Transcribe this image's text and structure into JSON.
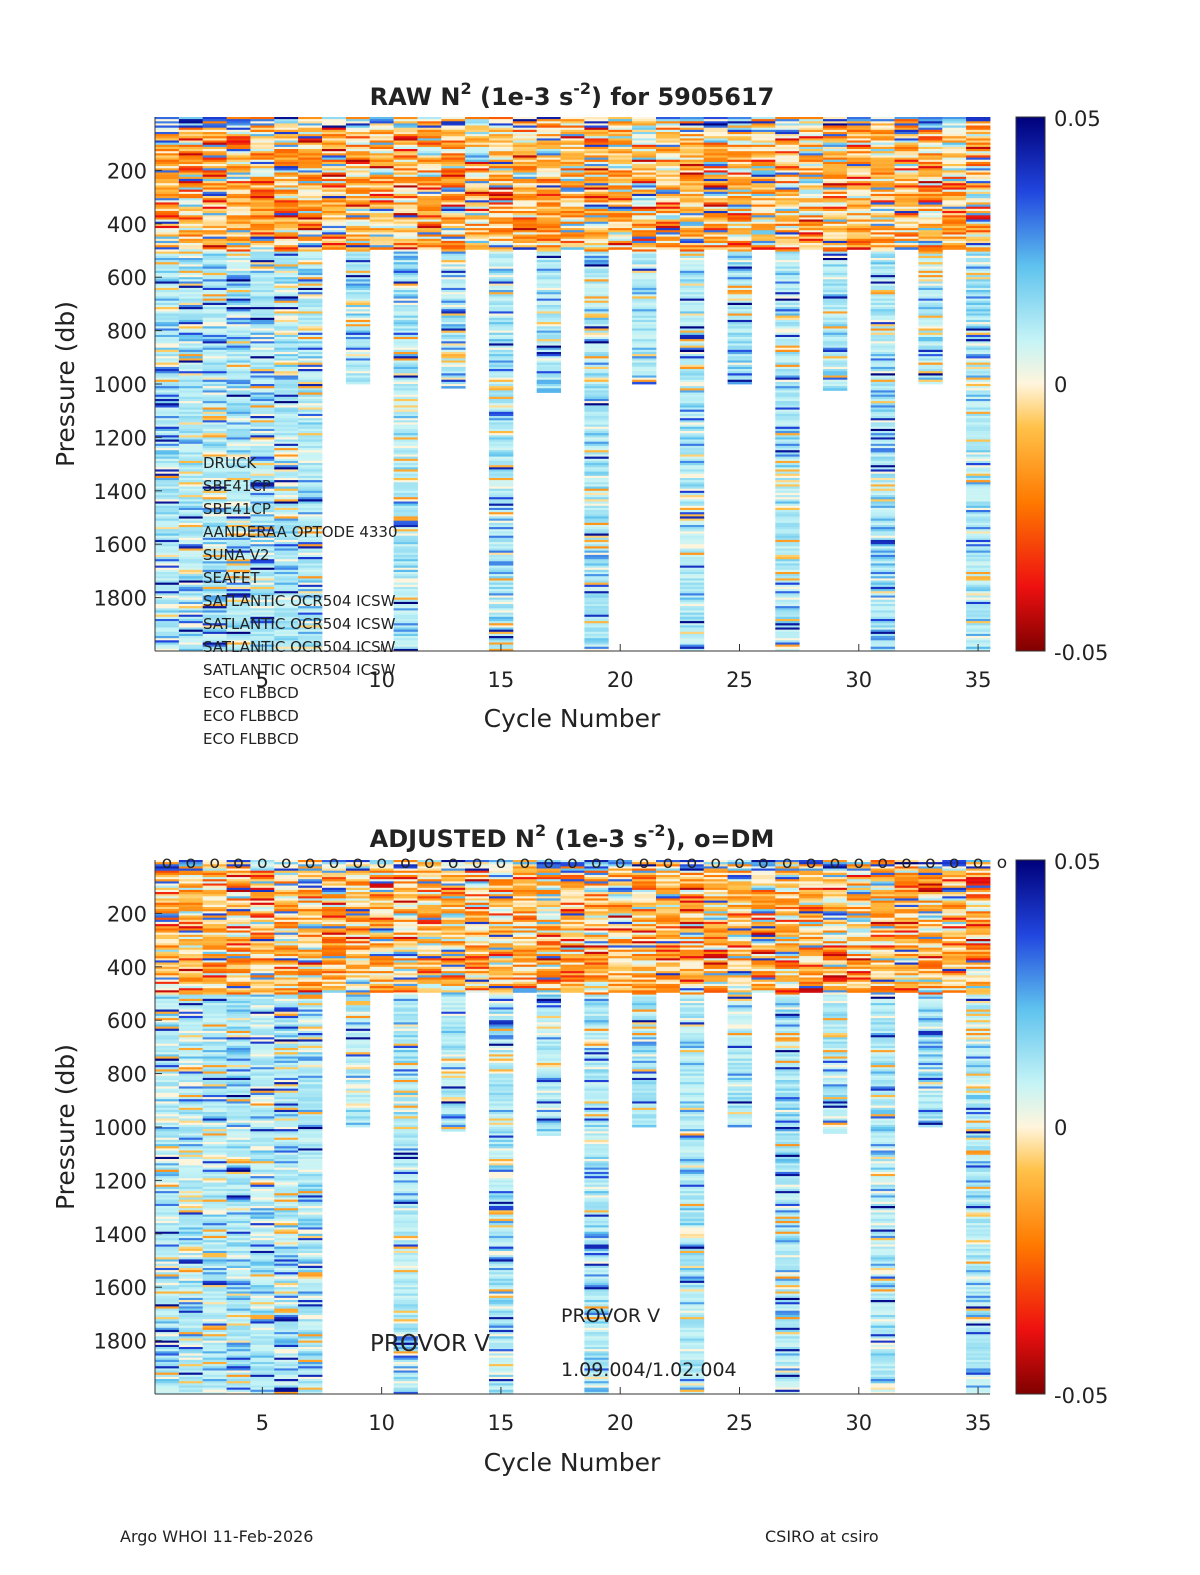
{
  "figure": {
    "footer_left": "Argo WHOI 11-Feb-2026",
    "footer_right": "CSIRO at csiro"
  },
  "chart_data": [
    {
      "type": "heatmap",
      "panel": "raw",
      "title_prefix": "RAW N",
      "title_units_pre": " (1e-3 s",
      "title_units_post": ") for 5905617",
      "exp": "2",
      "exp_units": "-2",
      "xlabel": "Cycle Number",
      "ylabel": "Pressure (db)",
      "xlim": [
        1,
        36
      ],
      "ylim": [
        0,
        2000
      ],
      "xticks": [
        5,
        10,
        15,
        20,
        25,
        30,
        35
      ],
      "yticks": [
        200,
        400,
        600,
        800,
        1000,
        1200,
        1400,
        1600,
        1800
      ],
      "colorbar": {
        "min": -0.05,
        "max": 0.05,
        "ticks": [
          "0.05",
          "0",
          "-0.05"
        ]
      },
      "sensors": [
        "DRUCK",
        "SBE41CP",
        "SBE41CP",
        "AANDERAA OPTODE 4330",
        "SUNA V2",
        "SEAFET",
        "SATLANTIC OCR504 ICSW",
        "SATLANTIC OCR504 ICSW",
        "SATLANTIC OCR504 ICSW",
        "SATLANTIC OCR504 ICSW",
        "ECO FLBBCD",
        "ECO FLBBCD",
        "ECO FLBBCD"
      ],
      "profile_max_pressure": [
        2000,
        2000,
        2000,
        2000,
        2000,
        2000,
        2000,
        490,
        1000,
        490,
        2000,
        490,
        1010,
        490,
        2000,
        490,
        1030,
        490,
        2000,
        490,
        1000,
        490,
        2000,
        490,
        1000,
        490,
        2000,
        490,
        1020,
        490,
        2000,
        490,
        1000,
        490,
        2000
      ]
    },
    {
      "type": "heatmap",
      "panel": "adjusted",
      "title_prefix": "ADJUSTED N",
      "title_units_pre": " (1e-3 s",
      "title_units_post": "), o=DM",
      "exp": "2",
      "exp_units": "-2",
      "xlabel": "Cycle Number",
      "ylabel": "Pressure (db)",
      "xlim": [
        1,
        36
      ],
      "ylim": [
        0,
        2000
      ],
      "xticks": [
        5,
        10,
        15,
        20,
        25,
        30,
        35
      ],
      "yticks": [
        200,
        400,
        600,
        800,
        1000,
        1200,
        1400,
        1600,
        1800
      ],
      "colorbar": {
        "min": -0.05,
        "max": 0.05,
        "ticks": [
          "0.05",
          "0",
          "-0.05"
        ]
      },
      "dm_marker": "o",
      "dm_cycles": [
        1,
        2,
        3,
        4,
        5,
        6,
        7,
        8,
        9,
        10,
        11,
        12,
        13,
        14,
        15,
        16,
        17,
        18,
        19,
        20,
        21,
        22,
        23,
        24,
        25,
        26,
        27,
        28,
        29,
        30,
        31,
        32,
        33,
        34,
        35,
        36
      ],
      "annotations": [
        "PROVOR V",
        "PROVOR V",
        "1.09.004/1.02.004"
      ],
      "profile_max_pressure": [
        2000,
        2000,
        2000,
        2000,
        2000,
        2000,
        2000,
        490,
        1000,
        490,
        2000,
        490,
        1010,
        490,
        2000,
        490,
        1030,
        490,
        2000,
        490,
        1000,
        490,
        2000,
        490,
        1000,
        490,
        2000,
        490,
        1020,
        490,
        2000,
        490,
        1000,
        490,
        2000
      ]
    }
  ]
}
